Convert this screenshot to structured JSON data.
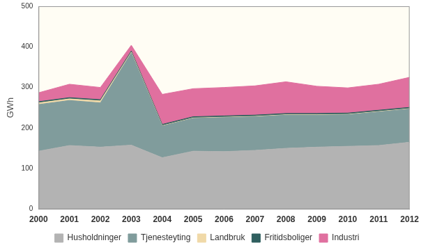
{
  "chart_data": {
    "type": "area",
    "stacked": true,
    "grid": false,
    "legend": "bottom",
    "ylabel": "GWh",
    "categories": [
      "2000",
      "2001",
      "2002",
      "2003",
      "2004",
      "2005",
      "2006",
      "2007",
      "2008",
      "2009",
      "2010",
      "2011",
      "2012"
    ],
    "ylim": [
      0,
      500
    ],
    "yticks": [
      0,
      100,
      200,
      300,
      400,
      500
    ],
    "series": [
      {
        "name": "Husholdninger",
        "color": "#b3b3b3",
        "values": [
          143,
          157,
          153,
          158,
          127,
          143,
          142,
          145,
          150,
          153,
          155,
          157,
          165
        ]
      },
      {
        "name": "Tjenesteyting",
        "color": "#809c9c",
        "values": [
          115,
          111,
          109,
          227,
          78,
          81,
          84,
          83,
          82,
          79,
          78,
          83,
          82
        ]
      },
      {
        "name": "Landbruk",
        "color": "#f0d9a8",
        "values": [
          4,
          4,
          5,
          2,
          1,
          1,
          1,
          1,
          1,
          1,
          1,
          1,
          1
        ]
      },
      {
        "name": "Fritidsboliger",
        "color": "#2f5f5f",
        "values": [
          3,
          3,
          3,
          3,
          3,
          3,
          3,
          3,
          3,
          3,
          3,
          3,
          3
        ]
      },
      {
        "name": "Industri",
        "color": "#e0709f",
        "values": [
          22,
          33,
          30,
          14,
          74,
          69,
          70,
          72,
          78,
          67,
          62,
          64,
          74
        ]
      }
    ]
  }
}
